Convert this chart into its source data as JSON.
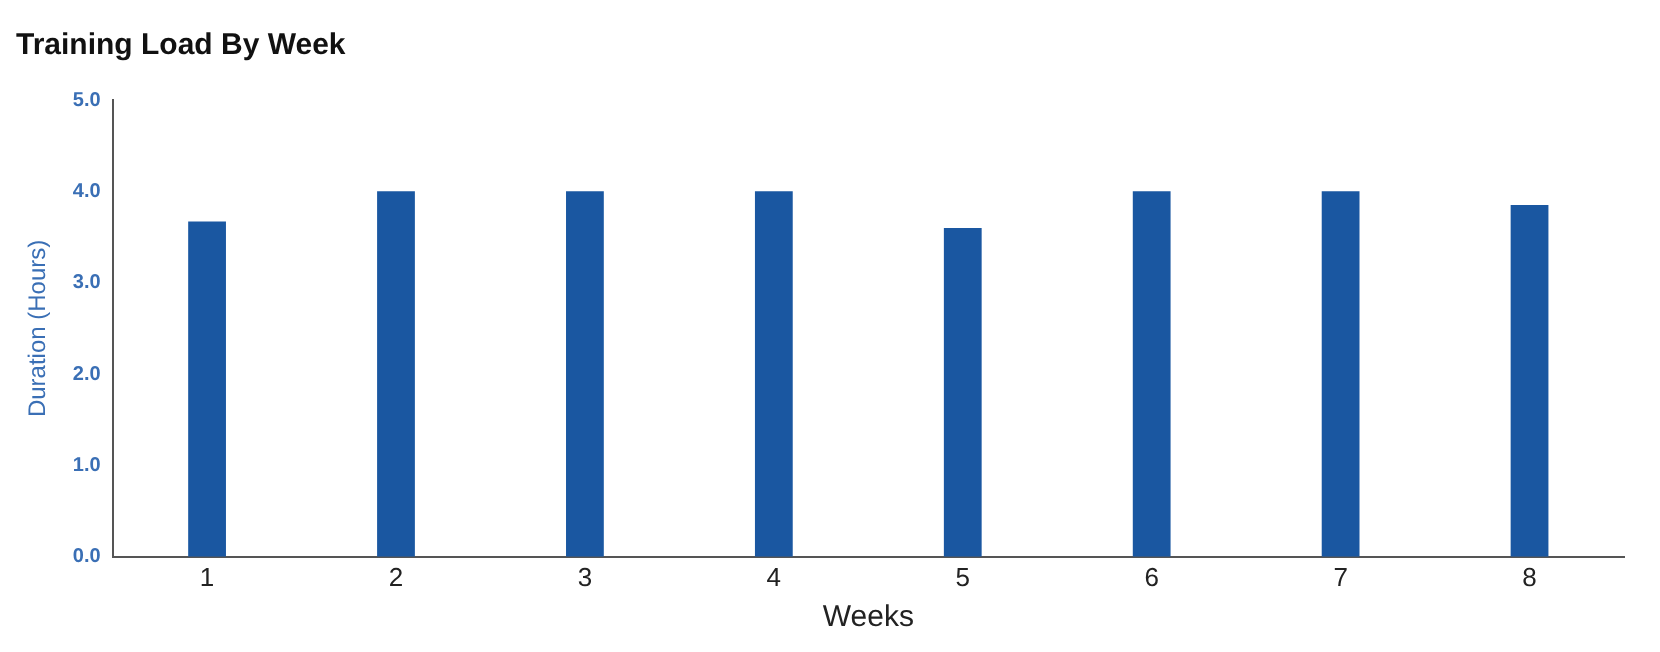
{
  "chart_data": {
    "type": "bar",
    "title": "Training Load By Week",
    "xlabel": "Weeks",
    "ylabel": "Duration (Hours)",
    "categories": [
      "1",
      "2",
      "3",
      "4",
      "5",
      "6",
      "7",
      "8"
    ],
    "values": [
      3.67,
      4.0,
      4.0,
      4.0,
      3.6,
      4.0,
      4.0,
      3.85
    ],
    "color": "#1a57a1",
    "ylim": [
      0,
      5
    ],
    "yticks": [
      {
        "value": 0,
        "label": "0.0"
      },
      {
        "value": 1,
        "label": "1.0"
      },
      {
        "value": 2,
        "label": "2.0"
      },
      {
        "value": 3,
        "label": "3.0"
      },
      {
        "value": 4,
        "label": "4.0"
      },
      {
        "value": 5,
        "label": "5.0"
      }
    ],
    "grid": false,
    "legend": false
  }
}
